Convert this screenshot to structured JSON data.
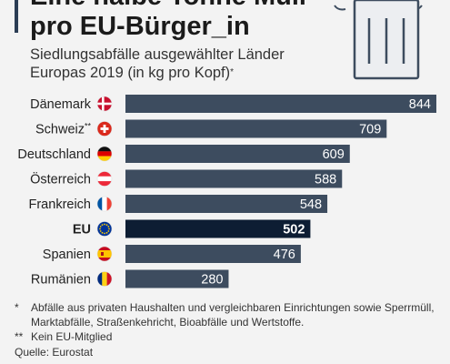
{
  "title": [
    "Eine halbe Tonne Müll",
    "pro EU-Bürger_in"
  ],
  "subtitle": [
    "Siedlungsabfälle ausgewählter Länder",
    "Europas 2019 (in kg pro Kopf)"
  ],
  "subtitle_footnote_mark": "*",
  "chart_data": {
    "type": "bar",
    "orientation": "horizontal",
    "categories": [
      "Dänemark",
      "Schweiz",
      "Deutschland",
      "Österreich",
      "Frankreich",
      "EU",
      "Spanien",
      "Rumänien"
    ],
    "category_marks": [
      "",
      "**",
      "",
      "",
      "",
      "",
      "",
      ""
    ],
    "values": [
      844,
      709,
      609,
      588,
      548,
      502,
      476,
      280
    ],
    "value_labels": [
      "844",
      "709",
      "609",
      "588",
      "548",
      "502",
      "476",
      "280"
    ],
    "highlight": "EU",
    "flags": [
      "dk",
      "ch",
      "de",
      "at",
      "fr",
      "eu",
      "es",
      "ro"
    ],
    "xlim": [
      0,
      844
    ],
    "grid": false,
    "xlabel": "",
    "ylabel": ""
  },
  "colors": {
    "bar": "#3d4c5f",
    "bar_highlight": "#0d1d33",
    "value_label": "#ffffff",
    "background": "#f3f3f3"
  },
  "footnotes": [
    {
      "mark": "*",
      "text": "Abfälle aus privaten Haushalten und vergleichbaren Einrichtungen sowie Sperrmüll, Marktabfälle, Straßenkehricht, Bioabfälle und Wertstoffe."
    },
    {
      "mark": "**",
      "text": "Kein EU-Mitglied"
    }
  ],
  "source": "Quelle: Eurostat",
  "icons": [
    "waste-bin-icon"
  ]
}
